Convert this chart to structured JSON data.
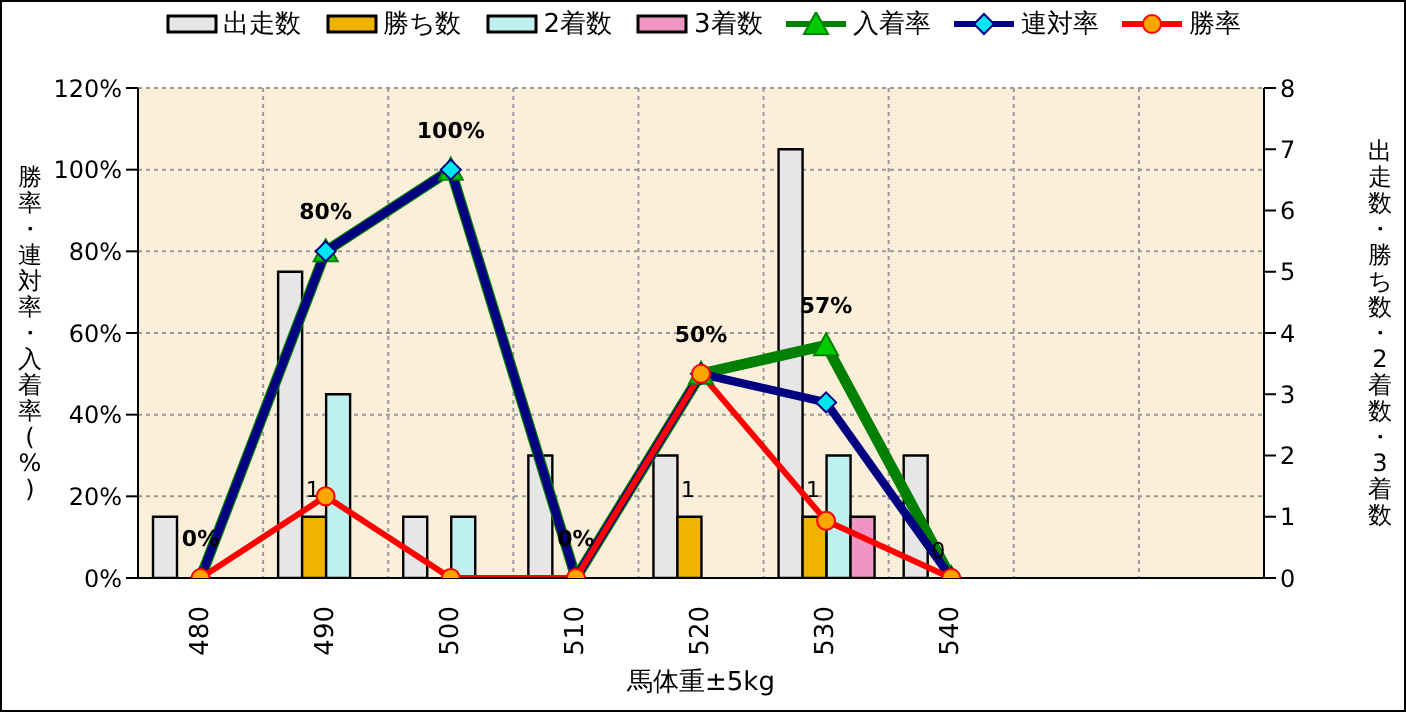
{
  "chart_data": {
    "type": "bar",
    "xlabel": "馬体重±5kg",
    "ylabel": "勝率・連対率・入着率(%)",
    "y2label": "出走数・勝ち数・2着数・3着数",
    "categories": [
      "480",
      "490",
      "500",
      "510",
      "520",
      "530",
      "540",
      null,
      null
    ],
    "series": [
      {
        "name": "出走数",
        "axis": "y2",
        "color": "#e6e6e6",
        "values": [
          1,
          5,
          1,
          2,
          2,
          7,
          2,
          null,
          null
        ]
      },
      {
        "name": "勝ち数",
        "axis": "y2",
        "color": "#f0b400",
        "values": [
          0,
          1,
          0,
          0,
          1,
          1,
          0,
          null,
          null
        ],
        "value_labels": [
          null,
          "1",
          null,
          null,
          "1",
          "1",
          "0",
          null,
          null
        ]
      },
      {
        "name": "2着数",
        "axis": "y2",
        "color": "#bff0f0",
        "values": [
          0,
          3,
          1,
          0,
          0,
          2,
          0,
          null,
          null
        ]
      },
      {
        "name": "3着数",
        "axis": "y2",
        "color": "#f095c3",
        "values": [
          0,
          0,
          0,
          0,
          0,
          1,
          0,
          null,
          null
        ]
      },
      {
        "name": "入着率",
        "type": "line",
        "color": "#008000",
        "marker": "triangle",
        "values": [
          0,
          80,
          100,
          0,
          50,
          57,
          0,
          null,
          null
        ],
        "value_labels": [
          "0%",
          "80%",
          "100%",
          "0%",
          "50%",
          "57%",
          null,
          null,
          null
        ]
      },
      {
        "name": "連対率",
        "type": "line",
        "color": "#000080",
        "marker": "diamond",
        "values": [
          0,
          80,
          100,
          0,
          50,
          43,
          0,
          null,
          null
        ]
      },
      {
        "name": "勝率",
        "type": "line",
        "color": "#ff0000",
        "marker": "circle",
        "values": [
          0,
          20,
          0,
          0,
          50,
          14,
          0,
          null,
          null
        ]
      }
    ],
    "ylim": [
      0,
      120
    ],
    "yticks": [
      {
        "value": 0,
        "label": "0%"
      },
      {
        "value": 20,
        "label": "20%"
      },
      {
        "value": 40,
        "label": "40%"
      },
      {
        "value": 60,
        "label": "60%"
      },
      {
        "value": 80,
        "label": "80%"
      },
      {
        "value": 100,
        "label": "100%"
      },
      {
        "value": 120,
        "label": "120%"
      }
    ],
    "y2lim": [
      0,
      8
    ],
    "y2ticks": [
      0,
      1,
      2,
      3,
      4,
      5,
      6,
      7,
      8
    ],
    "grid": true,
    "legend": "top"
  }
}
